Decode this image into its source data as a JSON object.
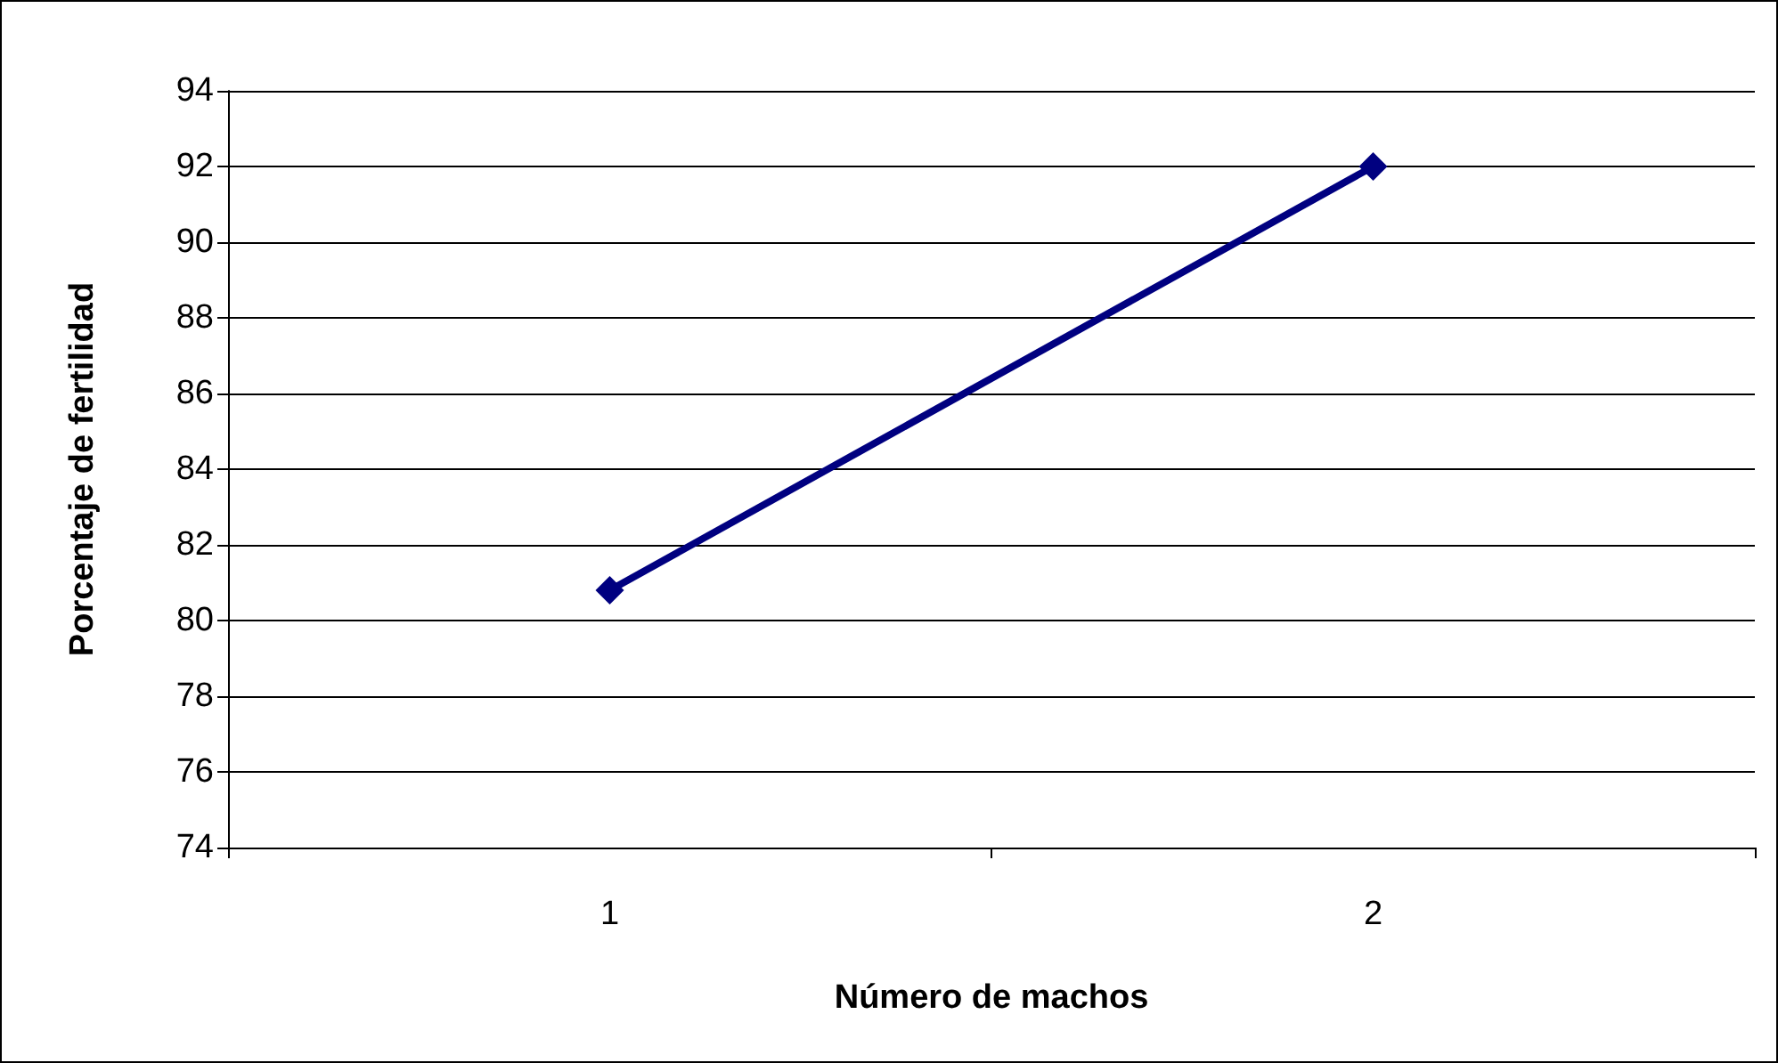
{
  "chart_data": {
    "type": "line",
    "xlabel": "Número de machos",
    "ylabel": "Porcentaje de fertilidad",
    "categories": [
      "1",
      "2"
    ],
    "series": [
      {
        "color": "#000080",
        "values": [
          80.8,
          92.0
        ]
      }
    ],
    "ylim": [
      74,
      94
    ],
    "yticks": [
      74,
      76,
      78,
      80,
      82,
      84,
      86,
      88,
      90,
      92,
      94
    ],
    "grid": "y",
    "legend": false,
    "marker": "diamond",
    "line_style": "solid"
  }
}
